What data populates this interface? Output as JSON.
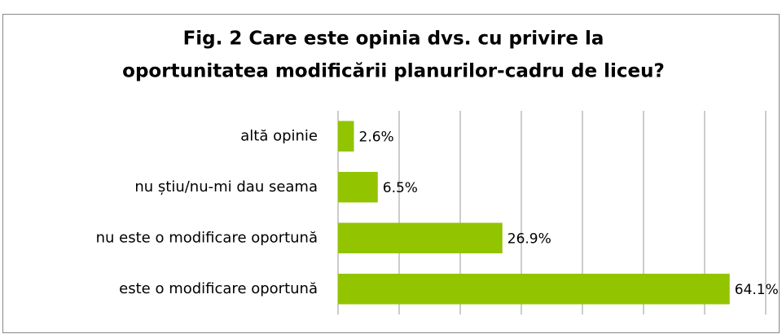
{
  "chart_data": {
    "type": "barh",
    "title": [
      "Fig. 2 Care este opinia dvs. cu privire la",
      "oportunitatea modificării planurilor-cadru de liceu?"
    ],
    "categories": [
      "altă opinie",
      "nu știu/nu-mi dau seama",
      "nu este o modificare oportună",
      "este o modificare oportună"
    ],
    "values": [
      2.6,
      6.5,
      26.9,
      64.1
    ],
    "value_labels": [
      "2.6%",
      "6.5%",
      "26.9%",
      "64.1%"
    ],
    "color": "#92c400",
    "xlim": [
      0,
      70
    ],
    "xticks": [
      0,
      10,
      20,
      30,
      40,
      50,
      60,
      70
    ],
    "grid": true
  }
}
